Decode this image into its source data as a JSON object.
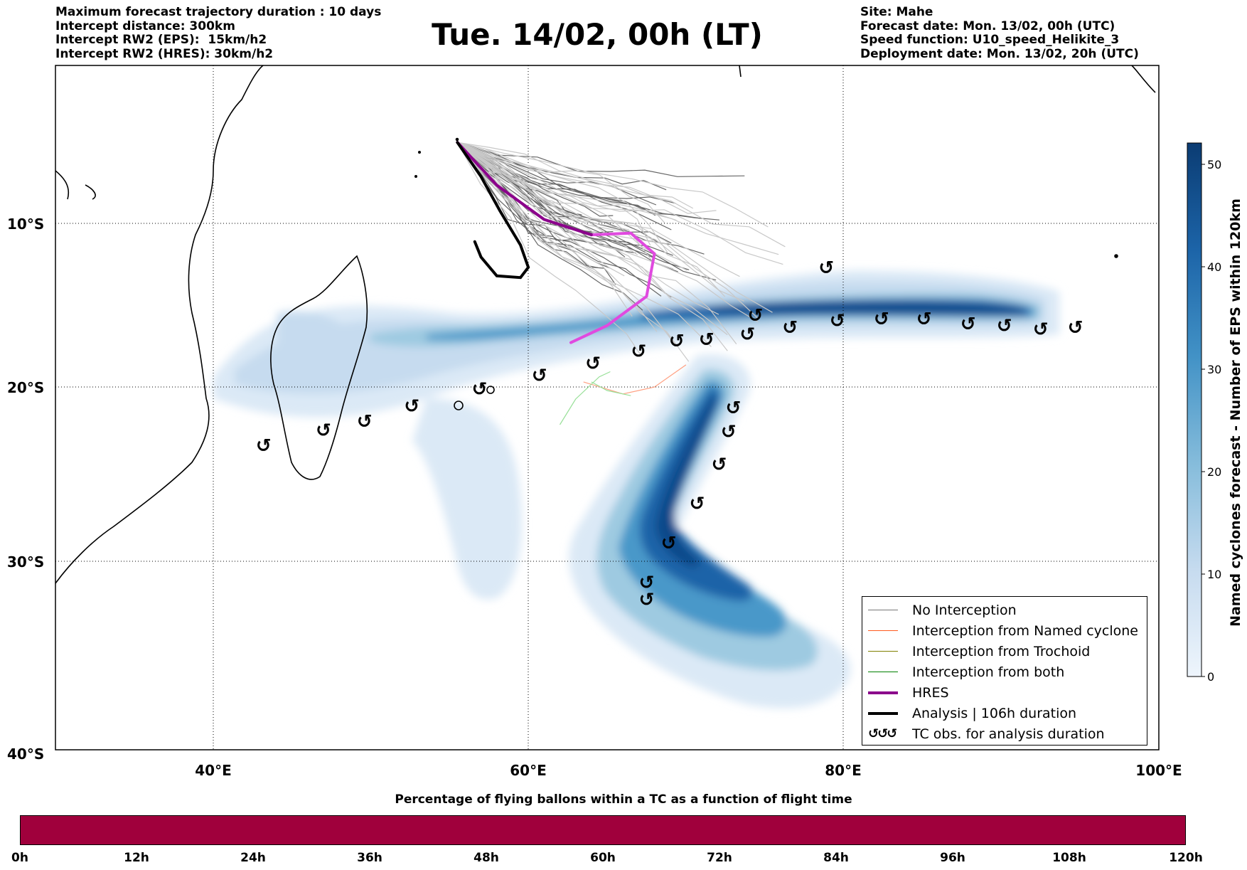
{
  "header_left": [
    "Maximum forecast trajectory duration : 10 days",
    "Intercept distance: 300km",
    "Intercept RW2 (EPS):  15km/h2",
    "Intercept RW2 (HRES): 30km/h2"
  ],
  "title": "Tue. 14/02, 00h (LT)",
  "header_right": [
    "Site: Mahe",
    "Forecast date: Mon. 13/02, 00h (UTC)",
    "Speed function: U10_speed_Helikite_3",
    "Deployment date: Mon. 13/02, 20h (UTC)"
  ],
  "map": {
    "lon_range": [
      30,
      100
    ],
    "lat_range": [
      -40,
      0
    ],
    "lon_ticks": [
      "40°E",
      "60°E",
      "80°E",
      "100°E"
    ],
    "lat_ticks": [
      "10°S",
      "20°S",
      "30°S",
      "40°S"
    ],
    "grid": "dotted",
    "site": "Mahe",
    "hres_track": [
      [
        55.5,
        -4.5
      ],
      [
        58,
        -7
      ],
      [
        61,
        -9
      ],
      [
        64,
        -9.9
      ],
      [
        66.5,
        -9.8
      ],
      [
        68,
        -11
      ],
      [
        67.5,
        -13.5
      ],
      [
        65,
        -15.2
      ],
      [
        62.7,
        -16.2
      ]
    ],
    "analysis_track": [
      [
        55.5,
        -4.5
      ],
      [
        57,
        -6.5
      ],
      [
        58.2,
        -8.5
      ],
      [
        59.5,
        -10.5
      ],
      [
        60,
        -11.8
      ],
      [
        59.5,
        -12.4
      ],
      [
        58,
        -12.3
      ],
      [
        57,
        -11.2
      ],
      [
        56.6,
        -10.3
      ]
    ],
    "tc_obs_west": [
      [
        43.2,
        -22.2
      ],
      [
        47,
        -21.3
      ],
      [
        49.6,
        -20.8
      ],
      [
        52.6,
        -19.9
      ],
      [
        56.9,
        -18.9
      ],
      [
        60.7,
        -18.1
      ],
      [
        64.1,
        -17.4
      ],
      [
        67,
        -16.7
      ],
      [
        69.4,
        -16.1
      ],
      [
        71.3,
        -16
      ],
      [
        73.9,
        -15.7
      ],
      [
        74.4,
        -14.6
      ],
      [
        76.6,
        -15.3
      ],
      [
        79.6,
        -14.9
      ],
      [
        82.4,
        -14.8
      ],
      [
        85.1,
        -14.8
      ],
      [
        87.9,
        -15.1
      ],
      [
        90.2,
        -15.2
      ],
      [
        92.5,
        -15.4
      ],
      [
        94.7,
        -15.3
      ],
      [
        78.9,
        -11.8
      ]
    ],
    "tc_obs_south": [
      [
        73,
        -20
      ],
      [
        72.7,
        -21.4
      ],
      [
        72.1,
        -23.3
      ],
      [
        70.7,
        -25.6
      ],
      [
        68.9,
        -27.9
      ],
      [
        67.5,
        -30.2
      ],
      [
        67.5,
        -31.2
      ]
    ]
  },
  "colorbar": {
    "title": "Named cyclones forecast - Number of EPS within 120km",
    "ticks": [
      "0",
      "10",
      "20",
      "30",
      "40",
      "50"
    ],
    "range": [
      0,
      52
    ],
    "colors": [
      "#deebf7",
      "#0b3c73"
    ]
  },
  "legend": {
    "items": [
      {
        "label": "No Interception",
        "color": "#777777",
        "width": 1.2
      },
      {
        "label": "Interception from Named cyclone",
        "color": "#ff5a1f",
        "width": 1.2
      },
      {
        "label": "Interception from Trochoid",
        "color": "#808000",
        "width": 1.2
      },
      {
        "label": "Interception from both",
        "color": "#008000",
        "width": 1.2
      },
      {
        "label": "HRES",
        "color": "#8b008b",
        "width": 4
      },
      {
        "label": "Analysis | 106h duration",
        "color": "#000000",
        "width": 4
      }
    ],
    "tc_symbol": "↺↺↺",
    "tc_label": "TC obs. for analysis duration"
  },
  "bottom": {
    "title": "Percentage of flying ballons within a TC as a function of flight time",
    "color": "#a0003c",
    "ticks": [
      "0h",
      "12h",
      "24h",
      "36h",
      "48h",
      "60h",
      "72h",
      "84h",
      "96h",
      "108h",
      "120h"
    ]
  }
}
